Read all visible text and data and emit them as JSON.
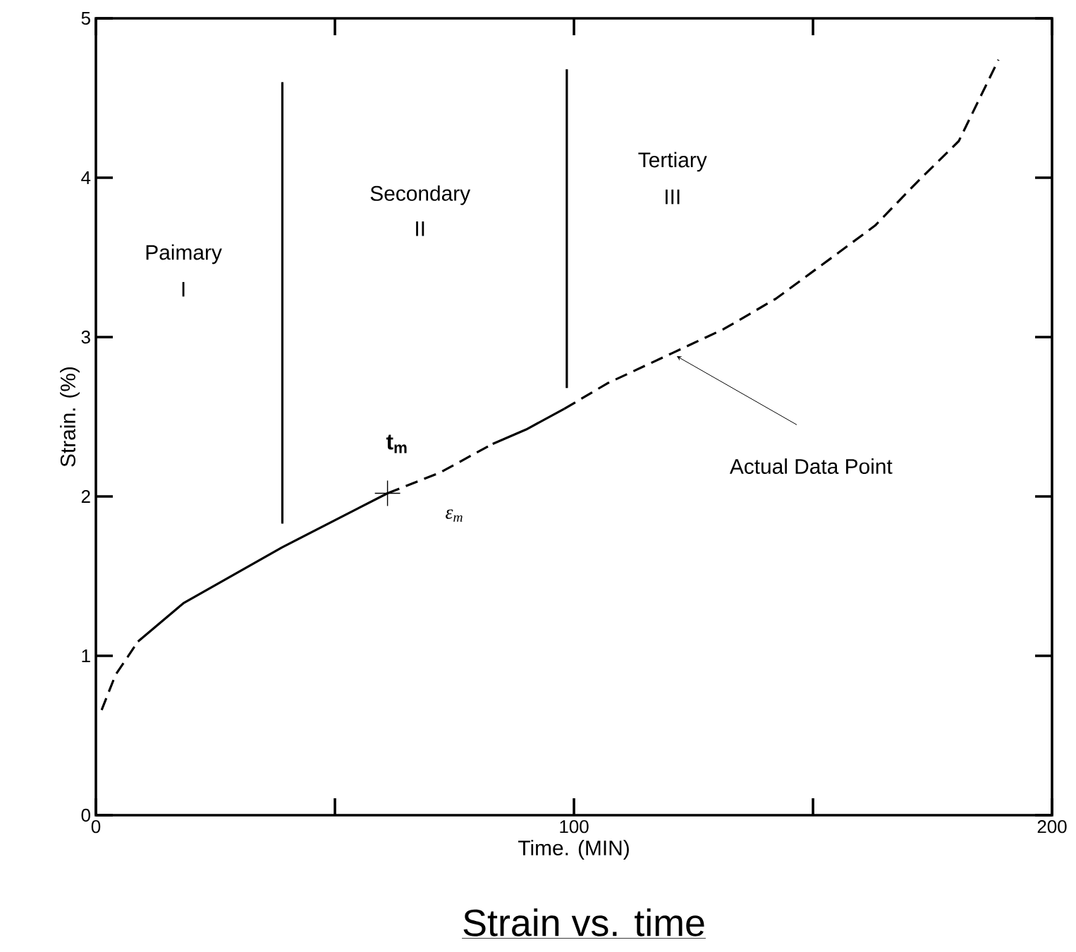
{
  "chart_data": {
    "type": "line",
    "title": "Strain vs. time",
    "xlabel": "Time. (MIN)",
    "ylabel": "Strain. (%)",
    "xlim": [
      0,
      200
    ],
    "ylim": [
      0,
      5
    ],
    "xticks": [
      0,
      {
        "value": 50,
        "label": null
      },
      100,
      {
        "value": 150,
        "label": null
      },
      200
    ],
    "yticks": [
      0,
      1,
      2,
      3,
      4,
      5
    ],
    "grid": false,
    "series": [
      {
        "color": "#000000",
        "line_style": "dashed",
        "x": [
          1.2,
          4.1,
          8.8
        ],
        "values": [
          0.66,
          0.88,
          1.09
        ]
      },
      {
        "color": "#000000",
        "line_style": "solid",
        "x": [
          8.8,
          18.3,
          38.9,
          61
        ],
        "values": [
          1.09,
          1.33,
          1.68,
          2.02
        ]
      },
      {
        "color": "#000000",
        "line_style": "dashed",
        "x": [
          61,
          72,
          83
        ],
        "values": [
          2.02,
          2.15,
          2.33
        ]
      },
      {
        "color": "#000000",
        "line_style": "solid",
        "x": [
          83,
          90,
          98
        ],
        "values": [
          2.33,
          2.42,
          2.55
        ]
      },
      {
        "color": "#000000",
        "line_style": "dashed",
        "x": [
          98,
          107,
          120.6,
          131.3,
          142.2,
          154,
          163,
          171.7,
          180.5,
          188.8
        ],
        "values": [
          2.55,
          2.71,
          2.9,
          3.05,
          3.24,
          3.5,
          3.7,
          3.97,
          4.23,
          4.74
        ]
      },
      {
        "color": "#000000",
        "line_style": "solid",
        "x": [
          39,
          39
        ],
        "values": [
          1.83,
          4.6
        ]
      },
      {
        "color": "#000000",
        "line_style": "solid",
        "x": [
          98.5,
          98.5
        ],
        "values": [
          2.68,
          4.68
        ]
      },
      {
        "type": "scatter",
        "color": "#000000",
        "marker": "cross",
        "x": [
          61
        ],
        "values": [
          2.02
        ]
      }
    ],
    "annotations": [
      "Paimary",
      "I",
      "Secondary",
      "II",
      "Tertiary",
      "III",
      "t$_{m}$",
      "ε$_{m}$",
      "Actual Data Point"
    ]
  }
}
